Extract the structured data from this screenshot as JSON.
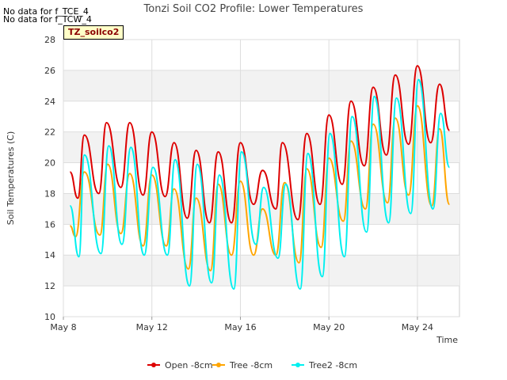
{
  "notes": [
    "No data for f_TCE_4",
    "No data for f_TCW_4"
  ],
  "site_label": "TZ_soilco2",
  "chart_data": {
    "type": "line",
    "title": "Tonzi Soil CO2 Profile: Lower Temperatures",
    "xlabel": "Time",
    "ylabel": "Soil Temperatures (C)",
    "xlim": [
      8,
      25.9
    ],
    "ylim": [
      10,
      28
    ],
    "x_ticks": [
      8,
      12,
      16,
      20,
      24
    ],
    "x_tick_labels": [
      "May 8",
      "May 12",
      "May 16",
      "May 20",
      "May 24"
    ],
    "y_ticks": [
      10,
      12,
      14,
      16,
      18,
      20,
      22,
      24,
      26,
      28
    ],
    "legend_position": "bottom",
    "series": [
      {
        "name": "Open -8cm",
        "color": "#dd0000",
        "days": [
          8.3,
          8.65,
          8.95,
          9.6,
          9.95,
          10.6,
          11,
          11.6,
          12,
          12.6,
          13,
          13.6,
          14,
          14.6,
          15,
          15.6,
          16,
          16.6,
          17,
          17.6,
          17.9,
          18.6,
          19,
          19.6,
          20,
          20.6,
          21,
          21.6,
          22,
          22.6,
          23,
          23.6,
          24,
          24.6,
          25,
          25.45
        ],
        "temps": [
          19.4,
          17.7,
          21.8,
          18.0,
          22.6,
          18.4,
          22.6,
          17.9,
          22.0,
          17.8,
          21.3,
          16.4,
          20.8,
          16.1,
          20.7,
          16.1,
          21.3,
          17.3,
          19.5,
          17.0,
          21.3,
          16.3,
          21.9,
          17.3,
          23.1,
          18.6,
          24.0,
          19.8,
          24.9,
          20.5,
          25.7,
          21.2,
          26.3,
          21.3,
          25.1,
          22.1
        ]
      },
      {
        "name": "Tree -8cm",
        "color": "#ffa500",
        "days": [
          8.3,
          8.55,
          8.95,
          9.65,
          10,
          10.6,
          11,
          11.6,
          12,
          12.65,
          13,
          13.65,
          14,
          14.65,
          15,
          15.6,
          16,
          16.6,
          17,
          17.6,
          18,
          18.65,
          19,
          19.65,
          20,
          20.65,
          21,
          21.65,
          22,
          22.65,
          23,
          23.6,
          24,
          24.65,
          25,
          25.45
        ],
        "temps": [
          15.9,
          15.2,
          19.4,
          15.3,
          19.9,
          15.4,
          19.3,
          14.6,
          19.2,
          14.6,
          18.3,
          13.1,
          17.7,
          13.0,
          18.6,
          14.0,
          18.8,
          14.0,
          17.0,
          14.0,
          18.7,
          13.5,
          19.6,
          14.5,
          20.3,
          16.2,
          21.4,
          17.0,
          22.5,
          17.4,
          22.9,
          17.9,
          23.7,
          17.2,
          22.2,
          17.3
        ]
      },
      {
        "name": "Tree2 -8cm",
        "color": "#00f0f0",
        "days": [
          8.3,
          8.7,
          8.95,
          9.7,
          10.05,
          10.65,
          11.05,
          11.65,
          12.05,
          12.7,
          13.05,
          13.7,
          14.05,
          14.7,
          15.05,
          15.7,
          16.05,
          16.7,
          17.05,
          17.7,
          18.05,
          18.7,
          19.05,
          19.7,
          20.05,
          20.7,
          21.05,
          21.7,
          22.05,
          22.7,
          23.05,
          23.7,
          24.05,
          24.7,
          25.05,
          25.45
        ],
        "temps": [
          17.2,
          13.9,
          20.5,
          14.1,
          21.1,
          14.7,
          21.0,
          14.0,
          19.7,
          14.0,
          20.2,
          12.0,
          19.9,
          12.2,
          19.2,
          11.8,
          20.7,
          14.7,
          18.4,
          13.8,
          18.6,
          11.8,
          20.6,
          12.6,
          21.9,
          13.9,
          23.0,
          15.5,
          24.3,
          16.1,
          24.2,
          16.7,
          25.4,
          17.0,
          23.2,
          19.7
        ]
      }
    ]
  }
}
